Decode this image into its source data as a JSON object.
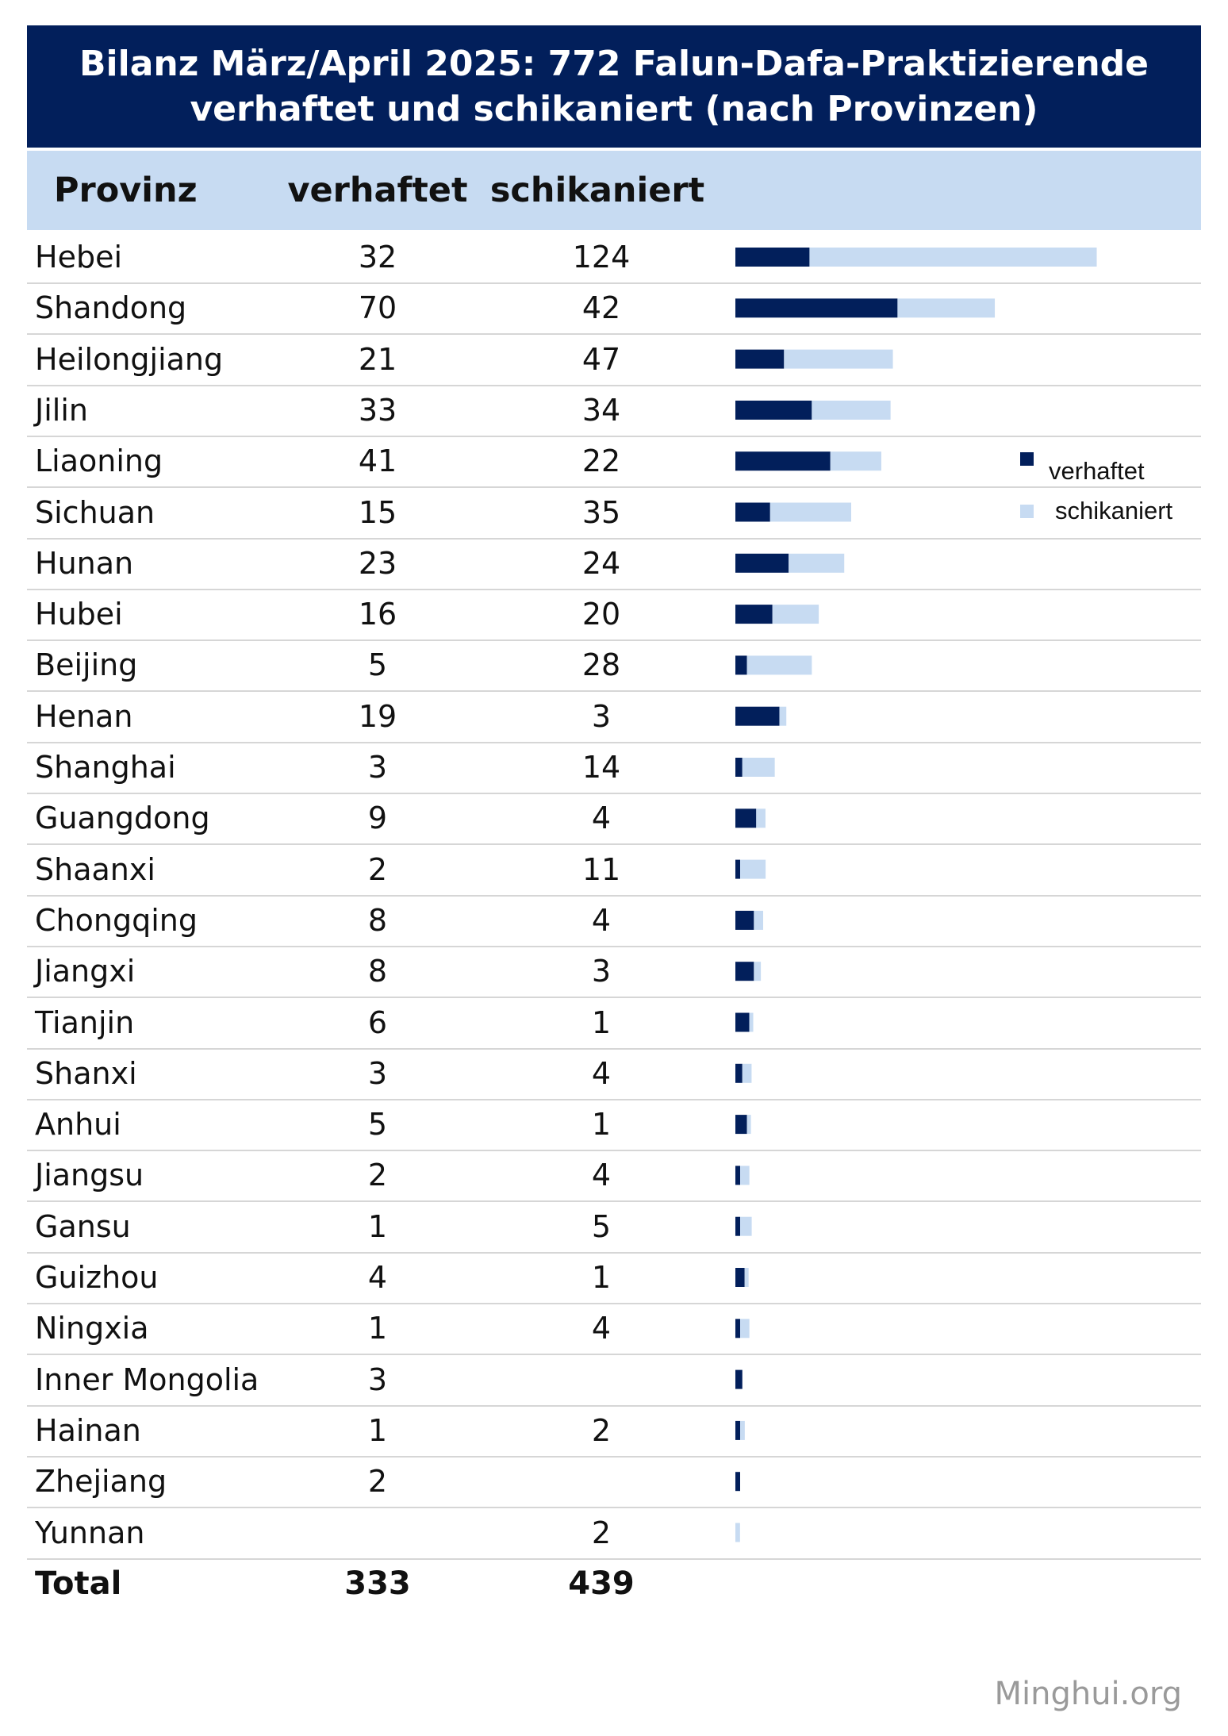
{
  "title": {
    "line1": "Bilanz März/April 2025: 772 Falun-Dafa-Praktizierende",
    "line2": "verhaftet und schikaniert (nach Provinzen)"
  },
  "columns": {
    "province": "Provinz",
    "arrested": "verhaftet",
    "harassed": "schikaniert"
  },
  "colors": {
    "header_bg": "#021f5b",
    "subheader_bg": "#c7dbf2",
    "arrested": "#021f5b",
    "harassed": "#c7dbf2"
  },
  "chart_data": {
    "type": "table",
    "legend": [
      "verhaftet",
      "schikaniert"
    ],
    "legend_position": "right",
    "rows": [
      {
        "province": "Hebei",
        "arrested": 32,
        "harassed": 124
      },
      {
        "province": "Shandong",
        "arrested": 70,
        "harassed": 42
      },
      {
        "province": "Heilongjiang",
        "arrested": 21,
        "harassed": 47
      },
      {
        "province": "Jilin",
        "arrested": 33,
        "harassed": 34
      },
      {
        "province": "Liaoning",
        "arrested": 41,
        "harassed": 22
      },
      {
        "province": "Sichuan",
        "arrested": 15,
        "harassed": 35
      },
      {
        "province": "Hunan",
        "arrested": 23,
        "harassed": 24
      },
      {
        "province": "Hubei",
        "arrested": 16,
        "harassed": 20
      },
      {
        "province": "Beijing",
        "arrested": 5,
        "harassed": 28
      },
      {
        "province": "Henan",
        "arrested": 19,
        "harassed": 3
      },
      {
        "province": "Shanghai",
        "arrested": 3,
        "harassed": 14
      },
      {
        "province": "Guangdong",
        "arrested": 9,
        "harassed": 4
      },
      {
        "province": "Shaanxi",
        "arrested": 2,
        "harassed": 11
      },
      {
        "province": "Chongqing",
        "arrested": 8,
        "harassed": 4
      },
      {
        "province": "Jiangxi",
        "arrested": 8,
        "harassed": 3
      },
      {
        "province": "Tianjin",
        "arrested": 6,
        "harassed": 1
      },
      {
        "province": "Shanxi",
        "arrested": 3,
        "harassed": 4
      },
      {
        "province": "Anhui",
        "arrested": 5,
        "harassed": 1
      },
      {
        "province": "Jiangsu",
        "arrested": 2,
        "harassed": 4
      },
      {
        "province": "Gansu",
        "arrested": 1,
        "harassed": 5
      },
      {
        "province": "Guizhou",
        "arrested": 4,
        "harassed": 1
      },
      {
        "province": "Ningxia",
        "arrested": 1,
        "harassed": 4
      },
      {
        "province": "Inner Mongolia",
        "arrested": 3,
        "harassed": null
      },
      {
        "province": "Hainan",
        "arrested": 1,
        "harassed": 2
      },
      {
        "province": "Zhejiang",
        "arrested": 2,
        "harassed": null
      },
      {
        "province": "Yunnan",
        "arrested": null,
        "harassed": 2
      }
    ],
    "total": {
      "label": "Total",
      "arrested": 333,
      "harassed": 439
    }
  },
  "watermark": "Minghui.org"
}
